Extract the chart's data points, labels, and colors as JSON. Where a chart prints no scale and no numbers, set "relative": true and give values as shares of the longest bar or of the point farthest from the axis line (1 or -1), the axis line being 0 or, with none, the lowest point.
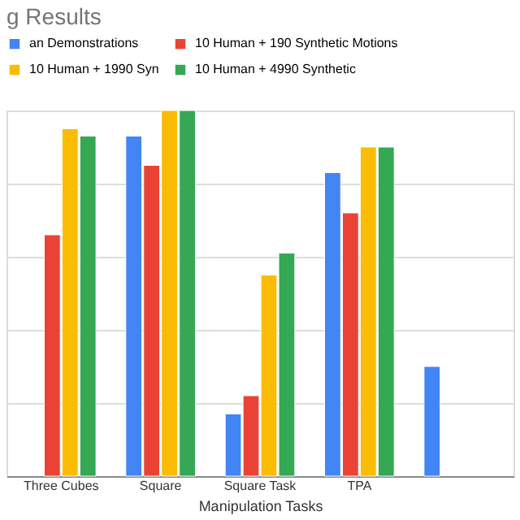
{
  "chart_data": {
    "type": "bar",
    "title": "g Results",
    "xlabel": "Manipulation Tasks",
    "relative": true,
    "grid": "y",
    "legend": "top",
    "categories": [
      "Three Cubes",
      "Square",
      "Square Task",
      "TPA",
      null
    ],
    "series": [
      {
        "name": "an Demonstrations",
        "color": "#4285f4",
        "values": [
          null,
          0.93,
          0.17,
          0.83,
          0.3
        ]
      },
      {
        "name": "10 Human + 190 Synthetic Motions",
        "color": "#ea4335",
        "values": [
          0.66,
          0.85,
          0.22,
          0.72,
          null
        ]
      },
      {
        "name": "10 Human + 1990 Syn",
        "color": "#fbbc04",
        "values": [
          0.95,
          1,
          0.55,
          0.9,
          null
        ]
      },
      {
        "name": "10 Human + 4990 Synthetic",
        "color": "#34a853",
        "values": [
          0.93,
          1,
          0.61,
          0.9,
          null
        ]
      }
    ]
  }
}
